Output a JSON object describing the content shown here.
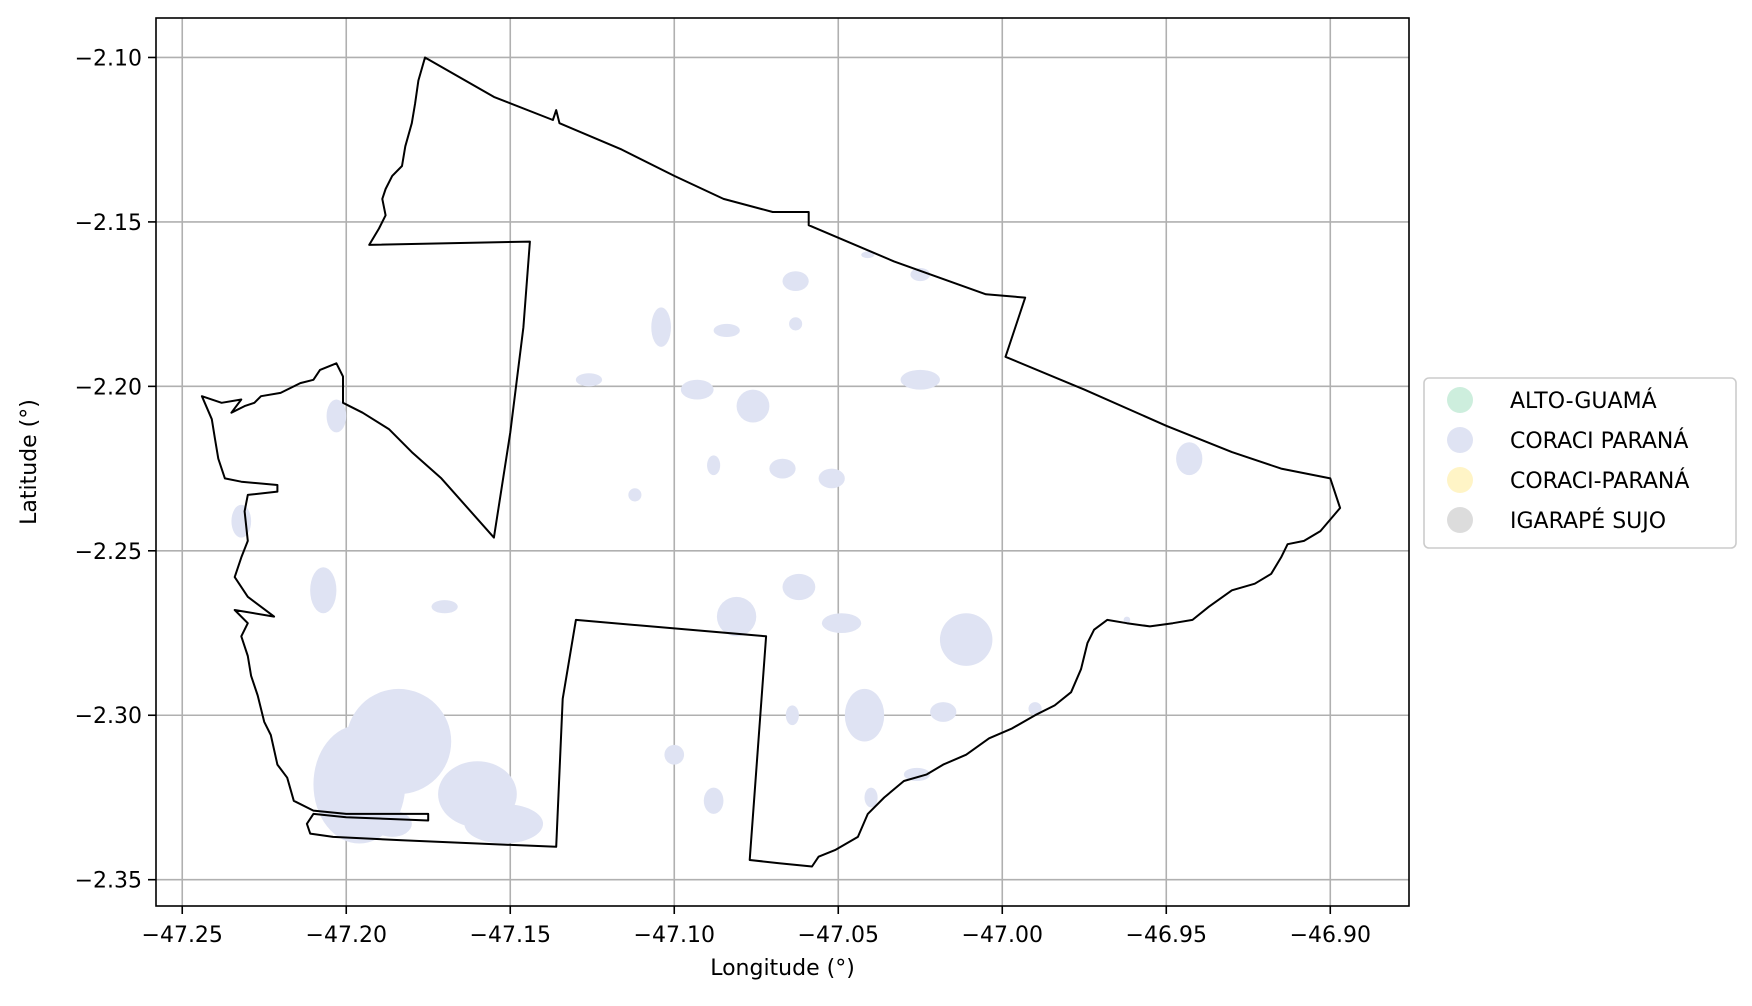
{
  "chart_data": {
    "type": "map",
    "title": "",
    "xlabel": "Longitude (°)",
    "ylabel": "Latitude (°)",
    "xlim": [
      -47.258,
      -46.876
    ],
    "ylim": [
      -2.358,
      -2.088
    ],
    "x_ticks": [
      {
        "value": -47.25,
        "label": "−47.25"
      },
      {
        "value": -47.2,
        "label": "−47.20"
      },
      {
        "value": -47.15,
        "label": "−47.15"
      },
      {
        "value": -47.1,
        "label": "−47.10"
      },
      {
        "value": -47.05,
        "label": "−47.05"
      },
      {
        "value": -47.0,
        "label": "−47.00"
      },
      {
        "value": -46.95,
        "label": "−46.95"
      },
      {
        "value": -46.9,
        "label": "−46.90"
      }
    ],
    "y_ticks": [
      {
        "value": -2.1,
        "label": "−2.10"
      },
      {
        "value": -2.15,
        "label": "−2.15"
      },
      {
        "value": -2.2,
        "label": "−2.20"
      },
      {
        "value": -2.25,
        "label": "−2.25"
      },
      {
        "value": -2.3,
        "label": "−2.30"
      },
      {
        "value": -2.35,
        "label": "−2.35"
      }
    ],
    "grid": true,
    "legend_position": "right",
    "legend": [
      {
        "label": "ALTO-GUAMÁ",
        "color": "#cdeedd"
      },
      {
        "label": "CORACI PARANÁ",
        "color": "#dfe3f3"
      },
      {
        "label": "CORACI-PARANÁ",
        "color": "#fff4c6"
      },
      {
        "label": "IGARAPÉ SUJO",
        "color": "#dcdcdc"
      }
    ],
    "boundary_color": "#000000",
    "fill_color": "#dfe3f3",
    "boundary": [
      [
        -47.176,
        -2.1
      ],
      [
        -47.155,
        -2.112
      ],
      [
        -47.137,
        -2.119
      ],
      [
        -47.136,
        -2.116
      ],
      [
        -47.135,
        -2.12
      ],
      [
        -47.116,
        -2.128
      ],
      [
        -47.1,
        -2.136
      ],
      [
        -47.085,
        -2.143
      ],
      [
        -47.07,
        -2.147
      ],
      [
        -47.059,
        -2.147
      ],
      [
        -47.059,
        -2.151
      ],
      [
        -47.033,
        -2.162
      ],
      [
        -47.005,
        -2.172
      ],
      [
        -46.993,
        -2.173
      ],
      [
        -46.999,
        -2.191
      ],
      [
        -46.975,
        -2.201
      ],
      [
        -46.95,
        -2.212
      ],
      [
        -46.93,
        -2.22
      ],
      [
        -46.915,
        -2.225
      ],
      [
        -46.9,
        -2.228
      ],
      [
        -46.897,
        -2.237
      ],
      [
        -46.903,
        -2.244
      ],
      [
        -46.908,
        -2.247
      ],
      [
        -46.913,
        -2.248
      ],
      [
        -46.915,
        -2.252
      ],
      [
        -46.918,
        -2.257
      ],
      [
        -46.923,
        -2.26
      ],
      [
        -46.93,
        -2.262
      ],
      [
        -46.937,
        -2.267
      ],
      [
        -46.942,
        -2.271
      ],
      [
        -46.948,
        -2.272
      ],
      [
        -46.955,
        -2.273
      ],
      [
        -46.962,
        -2.272
      ],
      [
        -46.968,
        -2.271
      ],
      [
        -46.972,
        -2.274
      ],
      [
        -46.974,
        -2.278
      ],
      [
        -46.976,
        -2.286
      ],
      [
        -46.979,
        -2.293
      ],
      [
        -46.984,
        -2.297
      ],
      [
        -46.99,
        -2.3
      ],
      [
        -46.997,
        -2.304
      ],
      [
        -47.004,
        -2.307
      ],
      [
        -47.011,
        -2.312
      ],
      [
        -47.018,
        -2.315
      ],
      [
        -47.023,
        -2.318
      ],
      [
        -47.03,
        -2.32
      ],
      [
        -47.036,
        -2.325
      ],
      [
        -47.041,
        -2.33
      ],
      [
        -47.044,
        -2.337
      ],
      [
        -47.051,
        -2.341
      ],
      [
        -47.056,
        -2.343
      ],
      [
        -47.058,
        -2.346
      ],
      [
        -47.068,
        -2.345
      ],
      [
        -47.077,
        -2.344
      ],
      [
        -47.072,
        -2.276
      ],
      [
        -47.13,
        -2.271
      ],
      [
        -47.134,
        -2.295
      ],
      [
        -47.136,
        -2.34
      ],
      [
        -47.16,
        -2.339
      ],
      [
        -47.183,
        -2.338
      ],
      [
        -47.204,
        -2.337
      ],
      [
        -47.211,
        -2.336
      ],
      [
        -47.212,
        -2.333
      ],
      [
        -47.21,
        -2.33
      ],
      [
        -47.2,
        -2.331
      ],
      [
        -47.175,
        -2.332
      ],
      [
        -47.175,
        -2.33
      ],
      [
        -47.2,
        -2.33
      ],
      [
        -47.21,
        -2.329
      ],
      [
        -47.216,
        -2.326
      ],
      [
        -47.218,
        -2.319
      ],
      [
        -47.221,
        -2.315
      ],
      [
        -47.223,
        -2.306
      ],
      [
        -47.225,
        -2.302
      ],
      [
        -47.227,
        -2.294
      ],
      [
        -47.229,
        -2.288
      ],
      [
        -47.23,
        -2.282
      ],
      [
        -47.232,
        -2.276
      ],
      [
        -47.23,
        -2.272
      ],
      [
        -47.234,
        -2.268
      ],
      [
        -47.222,
        -2.27
      ],
      [
        -47.23,
        -2.264
      ],
      [
        -47.234,
        -2.258
      ],
      [
        -47.232,
        -2.252
      ],
      [
        -47.23,
        -2.247
      ],
      [
        -47.231,
        -2.238
      ],
      [
        -47.23,
        -2.233
      ],
      [
        -47.221,
        -2.232
      ],
      [
        -47.221,
        -2.23
      ],
      [
        -47.232,
        -2.229
      ],
      [
        -47.237,
        -2.228
      ],
      [
        -47.239,
        -2.222
      ],
      [
        -47.24,
        -2.216
      ],
      [
        -47.241,
        -2.21
      ],
      [
        -47.244,
        -2.203
      ],
      [
        -47.238,
        -2.205
      ],
      [
        -47.232,
        -2.204
      ],
      [
        -47.235,
        -2.208
      ],
      [
        -47.231,
        -2.206
      ],
      [
        -47.228,
        -2.205
      ],
      [
        -47.226,
        -2.203
      ],
      [
        -47.22,
        -2.202
      ],
      [
        -47.214,
        -2.199
      ],
      [
        -47.21,
        -2.198
      ],
      [
        -47.208,
        -2.195
      ],
      [
        -47.203,
        -2.193
      ],
      [
        -47.201,
        -2.197
      ],
      [
        -47.201,
        -2.205
      ],
      [
        -47.195,
        -2.208
      ],
      [
        -47.187,
        -2.213
      ],
      [
        -47.18,
        -2.22
      ],
      [
        -47.171,
        -2.228
      ],
      [
        -47.155,
        -2.246
      ],
      [
        -47.15,
        -2.214
      ],
      [
        -47.146,
        -2.182
      ],
      [
        -47.144,
        -2.156
      ],
      [
        -47.193,
        -2.157
      ],
      [
        -47.19,
        -2.152
      ],
      [
        -47.188,
        -2.148
      ],
      [
        -47.189,
        -2.143
      ],
      [
        -47.188,
        -2.14
      ],
      [
        -47.186,
        -2.136
      ],
      [
        -47.183,
        -2.133
      ],
      [
        -47.182,
        -2.127
      ],
      [
        -47.18,
        -2.12
      ],
      [
        -47.179,
        -2.114
      ],
      [
        -47.178,
        -2.107
      ],
      [
        -47.176,
        -2.1
      ]
    ],
    "water_patches": [
      [
        -47.196,
        -2.321,
        0.014,
        0.018
      ],
      [
        -47.184,
        -2.308,
        0.016,
        0.016
      ],
      [
        -47.16,
        -2.324,
        0.012,
        0.01
      ],
      [
        -47.152,
        -2.333,
        0.012,
        0.006
      ],
      [
        -47.186,
        -2.333,
        0.006,
        0.004
      ],
      [
        -47.203,
        -2.316,
        0.004,
        0.004
      ],
      [
        -47.207,
        -2.262,
        0.004,
        0.007
      ],
      [
        -47.17,
        -2.267,
        0.004,
        0.002
      ],
      [
        -47.063,
        -2.168,
        0.004,
        0.003
      ],
      [
        -47.104,
        -2.182,
        0.003,
        0.006
      ],
      [
        -47.084,
        -2.183,
        0.004,
        0.002
      ],
      [
        -47.063,
        -2.181,
        0.002,
        0.002
      ],
      [
        -47.041,
        -2.16,
        0.002,
        0.001
      ],
      [
        -47.025,
        -2.166,
        0.003,
        0.002
      ],
      [
        -47.093,
        -2.201,
        0.005,
        0.003
      ],
      [
        -47.076,
        -2.206,
        0.005,
        0.005
      ],
      [
        -47.025,
        -2.198,
        0.006,
        0.003
      ],
      [
        -47.126,
        -2.198,
        0.004,
        0.002
      ],
      [
        -47.088,
        -2.224,
        0.002,
        0.003
      ],
      [
        -47.067,
        -2.225,
        0.004,
        0.003
      ],
      [
        -47.052,
        -2.228,
        0.004,
        0.003
      ],
      [
        -47.112,
        -2.233,
        0.002,
        0.002
      ],
      [
        -47.062,
        -2.261,
        0.005,
        0.004
      ],
      [
        -47.081,
        -2.27,
        0.006,
        0.006
      ],
      [
        -47.049,
        -2.272,
        0.006,
        0.003
      ],
      [
        -47.011,
        -2.277,
        0.008,
        0.008
      ],
      [
        -47.042,
        -2.3,
        0.006,
        0.008
      ],
      [
        -47.018,
        -2.299,
        0.004,
        0.003
      ],
      [
        -47.064,
        -2.3,
        0.002,
        0.003
      ],
      [
        -47.1,
        -2.312,
        0.003,
        0.003
      ],
      [
        -47.088,
        -2.326,
        0.003,
        0.004
      ],
      [
        -47.026,
        -2.318,
        0.004,
        0.002
      ],
      [
        -47.04,
        -2.325,
        0.002,
        0.003
      ],
      [
        -46.943,
        -2.222,
        0.004,
        0.005
      ],
      [
        -46.962,
        -2.271,
        0.001,
        0.001
      ],
      [
        -46.99,
        -2.298,
        0.002,
        0.002
      ],
      [
        -47.203,
        -2.209,
        0.003,
        0.005
      ],
      [
        -47.232,
        -2.241,
        0.003,
        0.005
      ]
    ]
  }
}
